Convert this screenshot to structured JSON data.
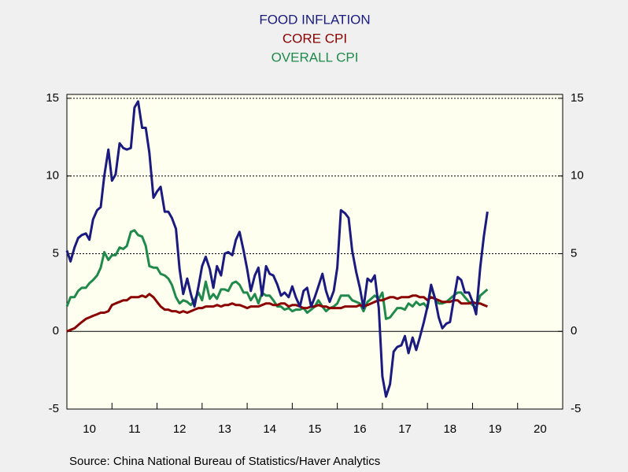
{
  "chart_data": {
    "type": "line",
    "source": "Source:  China National Bureau of Statistics/Haver Analytics",
    "xlim": [
      10,
      21
    ],
    "xticks": [
      {
        "value": 10,
        "label": "10"
      },
      {
        "value": 11,
        "label": "11"
      },
      {
        "value": 12,
        "label": "12"
      },
      {
        "value": 13,
        "label": "13"
      },
      {
        "value": 14,
        "label": "14"
      },
      {
        "value": 15,
        "label": "15"
      },
      {
        "value": 16,
        "label": "16"
      },
      {
        "value": 17,
        "label": "17"
      },
      {
        "value": 18,
        "label": "18"
      },
      {
        "value": 19,
        "label": "19"
      },
      {
        "value": 20,
        "label": "20"
      }
    ],
    "ylim": [
      -5,
      15.25
    ],
    "yticks": [
      -5,
      0,
      5,
      10,
      15
    ],
    "grid": true,
    "x": [
      10,
      10.08,
      10.17,
      10.25,
      10.33,
      10.42,
      10.5,
      10.58,
      10.67,
      10.75,
      10.83,
      10.92,
      11,
      11.08,
      11.17,
      11.25,
      11.33,
      11.42,
      11.5,
      11.58,
      11.67,
      11.75,
      11.83,
      11.92,
      12,
      12.08,
      12.17,
      12.25,
      12.33,
      12.42,
      12.5,
      12.58,
      12.67,
      12.75,
      12.83,
      12.92,
      13,
      13.08,
      13.17,
      13.25,
      13.33,
      13.42,
      13.5,
      13.58,
      13.67,
      13.75,
      13.83,
      13.92,
      14,
      14.08,
      14.17,
      14.25,
      14.33,
      14.42,
      14.5,
      14.58,
      14.67,
      14.75,
      14.83,
      14.92,
      15,
      15.08,
      15.17,
      15.25,
      15.33,
      15.42,
      15.5,
      15.58,
      15.67,
      15.75,
      15.83,
      15.92,
      16,
      16.08,
      16.17,
      16.25,
      16.33,
      16.42,
      16.5,
      16.58,
      16.67,
      16.75,
      16.83,
      16.92,
      17,
      17.08,
      17.17,
      17.25,
      17.33,
      17.42,
      17.5,
      17.58,
      17.67,
      17.75,
      17.83,
      17.92,
      18,
      18.08,
      18.17,
      18.25,
      18.33,
      18.42,
      18.5,
      18.58,
      18.67,
      18.75,
      18.83,
      18.92,
      19,
      19.08,
      19.17,
      19.25,
      19.33
    ],
    "series": [
      {
        "name": "FOOD INFLATION",
        "color": "#1a1a80",
        "values": [
          5.2,
          4.5,
          5.4,
          6.0,
          6.2,
          6.3,
          5.9,
          7.2,
          7.8,
          8.0,
          10.0,
          11.7,
          9.7,
          10.1,
          12.1,
          11.8,
          11.7,
          11.8,
          14.4,
          14.8,
          13.1,
          13.1,
          11.5,
          8.6,
          9.0,
          9.3,
          7.7,
          7.7,
          7.3,
          6.6,
          4.0,
          2.4,
          3.4,
          2.4,
          1.6,
          2.9,
          4.2,
          4.8,
          4.0,
          2.8,
          4.2,
          3.6,
          5.0,
          5.1,
          4.9,
          5.9,
          6.4,
          5.2,
          4.0,
          2.6,
          3.6,
          4.1,
          2.3,
          4.2,
          3.7,
          3.6,
          3.0,
          2.3,
          2.5,
          2.2,
          2.9,
          2.2,
          1.6,
          2.6,
          2.8,
          1.6,
          2.2,
          2.9,
          3.7,
          2.6,
          1.9,
          2.6,
          4.1,
          7.8,
          7.6,
          7.3,
          5.2,
          3.8,
          2.8,
          1.5,
          3.4,
          3.2,
          3.6,
          1.5,
          -2.9,
          -4.2,
          -3.4,
          -1.3,
          -1.0,
          -0.9,
          -0.3,
          -1.4,
          -0.4,
          -1.2,
          -0.4,
          0.6,
          1.6,
          3.0,
          2.1,
          0.9,
          0.2,
          0.5,
          0.6,
          2.0,
          3.5,
          3.3,
          2.5,
          2.5,
          1.9,
          1.1,
          4.1,
          6.1,
          7.7
        ]
      },
      {
        "name": "CORE CPI",
        "color": "#8b0000",
        "values": [
          0.0,
          0.1,
          0.2,
          0.4,
          0.6,
          0.8,
          0.9,
          1.0,
          1.1,
          1.2,
          1.2,
          1.3,
          1.7,
          1.8,
          1.9,
          2.0,
          2.0,
          2.2,
          2.2,
          2.2,
          2.3,
          2.2,
          2.4,
          2.2,
          1.9,
          1.6,
          1.4,
          1.4,
          1.3,
          1.3,
          1.2,
          1.3,
          1.2,
          1.3,
          1.4,
          1.5,
          1.5,
          1.6,
          1.6,
          1.6,
          1.7,
          1.6,
          1.7,
          1.7,
          1.8,
          1.7,
          1.7,
          1.6,
          1.5,
          1.6,
          1.6,
          1.6,
          1.7,
          1.8,
          1.8,
          1.7,
          1.7,
          1.8,
          1.8,
          1.6,
          1.7,
          1.7,
          1.6,
          1.5,
          1.5,
          1.6,
          1.6,
          1.7,
          1.6,
          1.6,
          1.5,
          1.5,
          1.5,
          1.5,
          1.6,
          1.6,
          1.6,
          1.6,
          1.7,
          1.6,
          1.7,
          1.8,
          1.9,
          2.0,
          2.0,
          2.1,
          2.2,
          2.2,
          2.1,
          2.2,
          2.2,
          2.2,
          2.3,
          2.3,
          2.2,
          2.2,
          2.0,
          2.2,
          2.1,
          2.0,
          1.9,
          1.9,
          1.9,
          2.0,
          2.0,
          1.8,
          1.8,
          1.8,
          1.9,
          1.8,
          1.8,
          1.7,
          1.6
        ]
      },
      {
        "name": "OVERALL CPI",
        "color": "#1f8a4c",
        "values": [
          1.6,
          2.2,
          2.2,
          2.6,
          2.8,
          2.8,
          3.1,
          3.3,
          3.6,
          4.1,
          5.1,
          4.6,
          4.9,
          4.9,
          5.4,
          5.3,
          5.5,
          6.4,
          6.5,
          6.2,
          6.1,
          5.5,
          4.2,
          4.1,
          4.1,
          3.7,
          3.6,
          3.4,
          3.0,
          2.2,
          1.8,
          2.0,
          1.9,
          1.7,
          2.0,
          2.5,
          2.0,
          3.2,
          2.1,
          2.4,
          2.1,
          2.7,
          2.7,
          2.6,
          3.1,
          3.2,
          3.0,
          2.5,
          2.5,
          2.0,
          2.4,
          1.8,
          2.5,
          2.3,
          2.3,
          2.0,
          1.6,
          1.6,
          1.4,
          1.5,
          1.3,
          1.4,
          1.4,
          1.5,
          1.2,
          1.4,
          1.6,
          2.0,
          1.6,
          1.3,
          1.5,
          1.6,
          1.8,
          2.3,
          2.3,
          2.3,
          2.0,
          1.9,
          1.8,
          1.3,
          1.9,
          2.1,
          2.3,
          2.1,
          2.5,
          0.8,
          0.9,
          1.2,
          1.5,
          1.5,
          1.4,
          1.8,
          1.6,
          1.9,
          1.7,
          1.8,
          1.5,
          2.9,
          2.1,
          1.8,
          1.8,
          1.9,
          2.1,
          2.3,
          2.5,
          2.5,
          2.2,
          1.9,
          1.7,
          1.5,
          2.3,
          2.5,
          2.7
        ]
      }
    ]
  }
}
